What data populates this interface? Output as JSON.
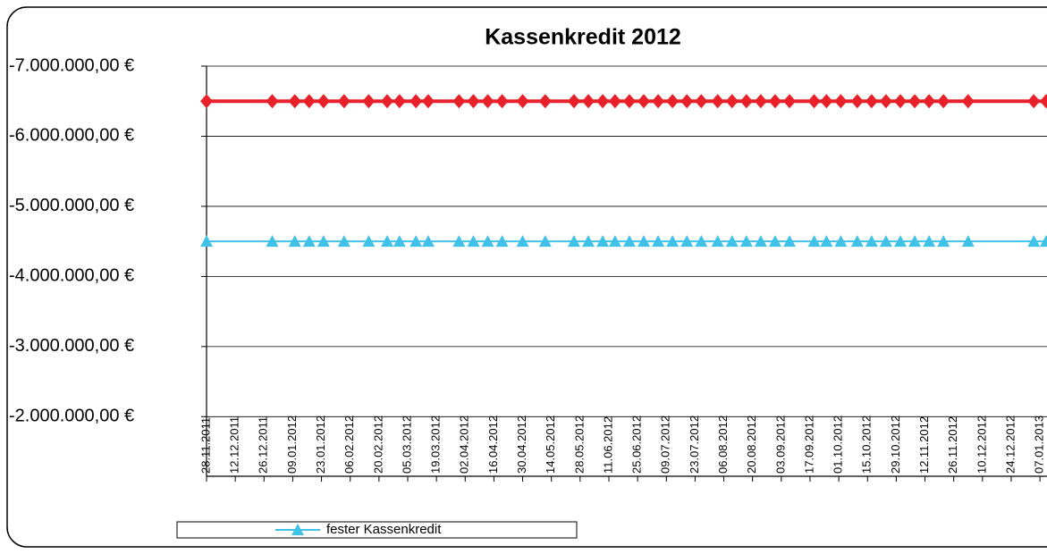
{
  "chart_data": {
    "type": "line",
    "title": "Kassenkredit 2012",
    "x": [
      "28.11.2011",
      "30.12.2011",
      "10.01.2012",
      "17.01.2012",
      "24.01.2012",
      "03.02.2012",
      "15.02.2012",
      "24.02.2012",
      "01.03.2012",
      "09.03.2012",
      "15.03.2012",
      "30.03.2012",
      "06.04.2012",
      "13.04.2012",
      "20.04.2012",
      "30.04.2012",
      "11.05.2012",
      "25.05.2012",
      "01.06.2012",
      "08.06.2012",
      "14.06.2012",
      "21.06.2012",
      "28.06.2012",
      "05.07.2012",
      "12.07.2012",
      "19.07.2012",
      "26.07.2012",
      "03.08.2012",
      "10.08.2012",
      "17.08.2012",
      "24.08.2012",
      "31.08.2012",
      "07.09.2012",
      "19.09.2012",
      "25.09.2012",
      "02.10.2012",
      "10.10.2012",
      "17.10.2012",
      "24.10.2012",
      "31.10.2012",
      "07.11.2012",
      "14.11.2012",
      "21.11.2012",
      "03.12.2012",
      "04.01.2013",
      "10.01.2013"
    ],
    "series": [
      {
        "color": "#e8202a",
        "marker": "diamond",
        "values": [
          -6500000,
          -6500000,
          -6500000,
          -6500000,
          -6500000,
          -6500000,
          -6500000,
          -6500000,
          -6500000,
          -6500000,
          -6500000,
          -6500000,
          -6500000,
          -6500000,
          -6500000,
          -6500000,
          -6500000,
          -6500000,
          -6500000,
          -6500000,
          -6500000,
          -6500000,
          -6500000,
          -6500000,
          -6500000,
          -6500000,
          -6500000,
          -6500000,
          -6500000,
          -6500000,
          -6500000,
          -6500000,
          -6500000,
          -6500000,
          -6500000,
          -6500000,
          -6500000,
          -6500000,
          -6500000,
          -6500000,
          -6500000,
          -6500000,
          -6500000,
          -6500000,
          -6500000,
          -6500000
        ]
      },
      {
        "name": "fester Kassenkredit",
        "color": "#3fc1e8",
        "marker": "triangle",
        "values": [
          -4500000,
          -4500000,
          -4500000,
          -4500000,
          -4500000,
          -4500000,
          -4500000,
          -4500000,
          -4500000,
          -4500000,
          -4500000,
          -4500000,
          -4500000,
          -4500000,
          -4500000,
          -4500000,
          -4500000,
          -4500000,
          -4500000,
          -4500000,
          -4500000,
          -4500000,
          -4500000,
          -4500000,
          -4500000,
          -4500000,
          -4500000,
          -4500000,
          -4500000,
          -4500000,
          -4500000,
          -4500000,
          -4500000,
          -4500000,
          -4500000,
          -4500000,
          -4500000,
          -4500000,
          -4500000,
          -4500000,
          -4500000,
          -4500000,
          -4500000,
          -4500000,
          -4500000,
          -4500000
        ]
      }
    ],
    "xlim": [
      "28.11.2011",
      "10.01.2013"
    ],
    "xticks": [
      "28.11.2011",
      "12.12.2011",
      "26.12.2011",
      "09.01.2012",
      "23.01.2012",
      "06.02.2012",
      "20.02.2012",
      "05.03.2012",
      "19.03.2012",
      "02.04.2012",
      "16.04.2012",
      "30.04.2012",
      "14.05.2012",
      "28.05.2012",
      "11.06.2012",
      "25.06.2012",
      "09.07.2012",
      "23.07.2012",
      "06.08.2012",
      "20.08.2012",
      "03.09.2012",
      "17.09.2012",
      "01.10.2012",
      "15.10.2012",
      "29.10.2012",
      "12.11.2012",
      "26.11.2012",
      "10.12.2012",
      "24.12.2012",
      "07.01.2013"
    ],
    "ylim": [
      -7000000,
      -1150000
    ],
    "yticks": [
      {
        "value": -7000000,
        "label": "-7.000.000,00 €"
      },
      {
        "value": -6000000,
        "label": "-6.000.000,00 €"
      },
      {
        "value": -5000000,
        "label": "-5.000.000,00 €"
      },
      {
        "value": -4000000,
        "label": "-4.000.000,00 €"
      },
      {
        "value": -3000000,
        "label": "-3.000.000,00 €"
      },
      {
        "value": -2000000,
        "label": "-2.000.000,00 €"
      }
    ],
    "grid": true
  }
}
